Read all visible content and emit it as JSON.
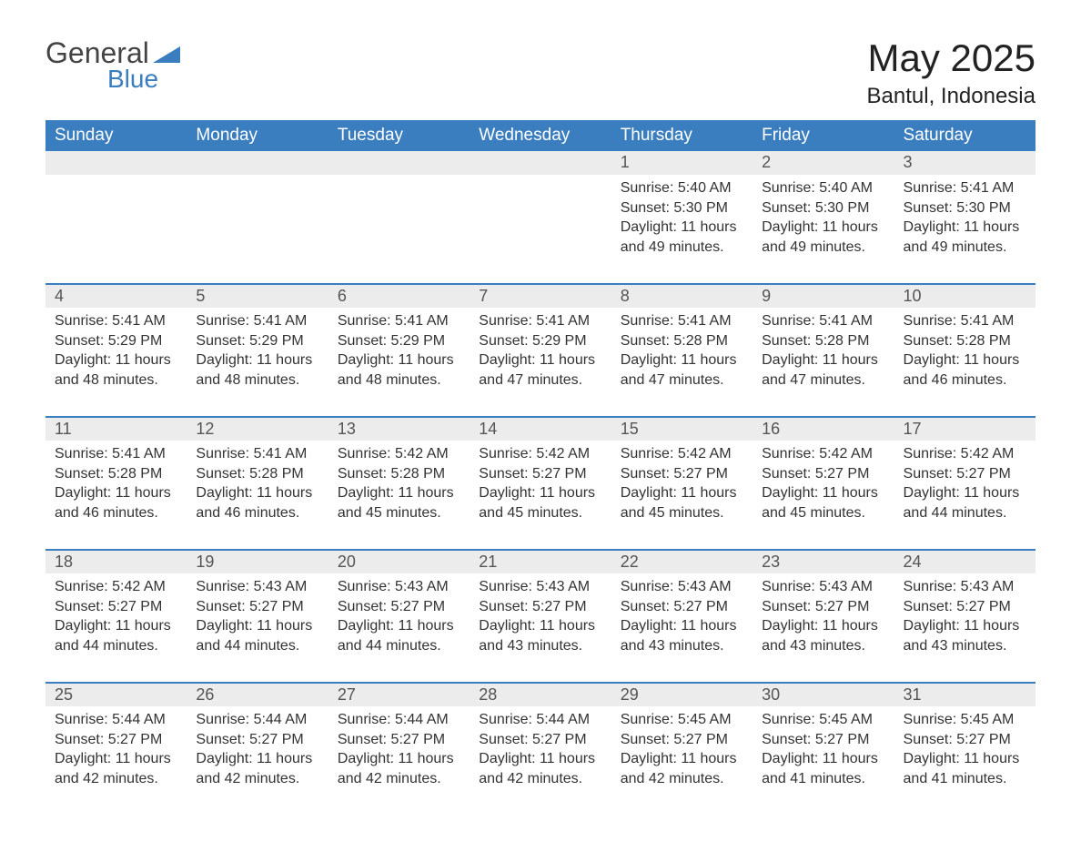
{
  "brand": {
    "word1": "General",
    "word2": "Blue",
    "triangle_color": "#3b7ec0",
    "text_color_general": "#444444",
    "text_color_blue": "#3b7ec0"
  },
  "title": "May 2025",
  "location": "Bantul, Indonesia",
  "colors": {
    "header_bg": "#3b7ec0",
    "header_text": "#ffffff",
    "daynum_bg": "#ececec",
    "daynum_text": "#555555",
    "body_text": "#333333",
    "row_border": "#3b7ec0",
    "page_bg": "#ffffff"
  },
  "typography": {
    "month_title_fontsize": 42,
    "location_fontsize": 24,
    "day_header_fontsize": 19,
    "daynum_fontsize": 18,
    "cell_fontsize": 16,
    "font_family": "Arial"
  },
  "weekdays": [
    "Sunday",
    "Monday",
    "Tuesday",
    "Wednesday",
    "Thursday",
    "Friday",
    "Saturday"
  ],
  "weeks": [
    [
      null,
      null,
      null,
      null,
      {
        "day": "1",
        "sunrise": "5:40 AM",
        "sunset": "5:30 PM",
        "daylight": "11 hours and 49 minutes."
      },
      {
        "day": "2",
        "sunrise": "5:40 AM",
        "sunset": "5:30 PM",
        "daylight": "11 hours and 49 minutes."
      },
      {
        "day": "3",
        "sunrise": "5:41 AM",
        "sunset": "5:30 PM",
        "daylight": "11 hours and 49 minutes."
      }
    ],
    [
      {
        "day": "4",
        "sunrise": "5:41 AM",
        "sunset": "5:29 PM",
        "daylight": "11 hours and 48 minutes."
      },
      {
        "day": "5",
        "sunrise": "5:41 AM",
        "sunset": "5:29 PM",
        "daylight": "11 hours and 48 minutes."
      },
      {
        "day": "6",
        "sunrise": "5:41 AM",
        "sunset": "5:29 PM",
        "daylight": "11 hours and 48 minutes."
      },
      {
        "day": "7",
        "sunrise": "5:41 AM",
        "sunset": "5:29 PM",
        "daylight": "11 hours and 47 minutes."
      },
      {
        "day": "8",
        "sunrise": "5:41 AM",
        "sunset": "5:28 PM",
        "daylight": "11 hours and 47 minutes."
      },
      {
        "day": "9",
        "sunrise": "5:41 AM",
        "sunset": "5:28 PM",
        "daylight": "11 hours and 47 minutes."
      },
      {
        "day": "10",
        "sunrise": "5:41 AM",
        "sunset": "5:28 PM",
        "daylight": "11 hours and 46 minutes."
      }
    ],
    [
      {
        "day": "11",
        "sunrise": "5:41 AM",
        "sunset": "5:28 PM",
        "daylight": "11 hours and 46 minutes."
      },
      {
        "day": "12",
        "sunrise": "5:41 AM",
        "sunset": "5:28 PM",
        "daylight": "11 hours and 46 minutes."
      },
      {
        "day": "13",
        "sunrise": "5:42 AM",
        "sunset": "5:28 PM",
        "daylight": "11 hours and 45 minutes."
      },
      {
        "day": "14",
        "sunrise": "5:42 AM",
        "sunset": "5:27 PM",
        "daylight": "11 hours and 45 minutes."
      },
      {
        "day": "15",
        "sunrise": "5:42 AM",
        "sunset": "5:27 PM",
        "daylight": "11 hours and 45 minutes."
      },
      {
        "day": "16",
        "sunrise": "5:42 AM",
        "sunset": "5:27 PM",
        "daylight": "11 hours and 45 minutes."
      },
      {
        "day": "17",
        "sunrise": "5:42 AM",
        "sunset": "5:27 PM",
        "daylight": "11 hours and 44 minutes."
      }
    ],
    [
      {
        "day": "18",
        "sunrise": "5:42 AM",
        "sunset": "5:27 PM",
        "daylight": "11 hours and 44 minutes."
      },
      {
        "day": "19",
        "sunrise": "5:43 AM",
        "sunset": "5:27 PM",
        "daylight": "11 hours and 44 minutes."
      },
      {
        "day": "20",
        "sunrise": "5:43 AM",
        "sunset": "5:27 PM",
        "daylight": "11 hours and 44 minutes."
      },
      {
        "day": "21",
        "sunrise": "5:43 AM",
        "sunset": "5:27 PM",
        "daylight": "11 hours and 43 minutes."
      },
      {
        "day": "22",
        "sunrise": "5:43 AM",
        "sunset": "5:27 PM",
        "daylight": "11 hours and 43 minutes."
      },
      {
        "day": "23",
        "sunrise": "5:43 AM",
        "sunset": "5:27 PM",
        "daylight": "11 hours and 43 minutes."
      },
      {
        "day": "24",
        "sunrise": "5:43 AM",
        "sunset": "5:27 PM",
        "daylight": "11 hours and 43 minutes."
      }
    ],
    [
      {
        "day": "25",
        "sunrise": "5:44 AM",
        "sunset": "5:27 PM",
        "daylight": "11 hours and 42 minutes."
      },
      {
        "day": "26",
        "sunrise": "5:44 AM",
        "sunset": "5:27 PM",
        "daylight": "11 hours and 42 minutes."
      },
      {
        "day": "27",
        "sunrise": "5:44 AM",
        "sunset": "5:27 PM",
        "daylight": "11 hours and 42 minutes."
      },
      {
        "day": "28",
        "sunrise": "5:44 AM",
        "sunset": "5:27 PM",
        "daylight": "11 hours and 42 minutes."
      },
      {
        "day": "29",
        "sunrise": "5:45 AM",
        "sunset": "5:27 PM",
        "daylight": "11 hours and 42 minutes."
      },
      {
        "day": "30",
        "sunrise": "5:45 AM",
        "sunset": "5:27 PM",
        "daylight": "11 hours and 41 minutes."
      },
      {
        "day": "31",
        "sunrise": "5:45 AM",
        "sunset": "5:27 PM",
        "daylight": "11 hours and 41 minutes."
      }
    ]
  ],
  "labels": {
    "sunrise_prefix": "Sunrise: ",
    "sunset_prefix": "Sunset: ",
    "daylight_prefix": "Daylight: "
  }
}
